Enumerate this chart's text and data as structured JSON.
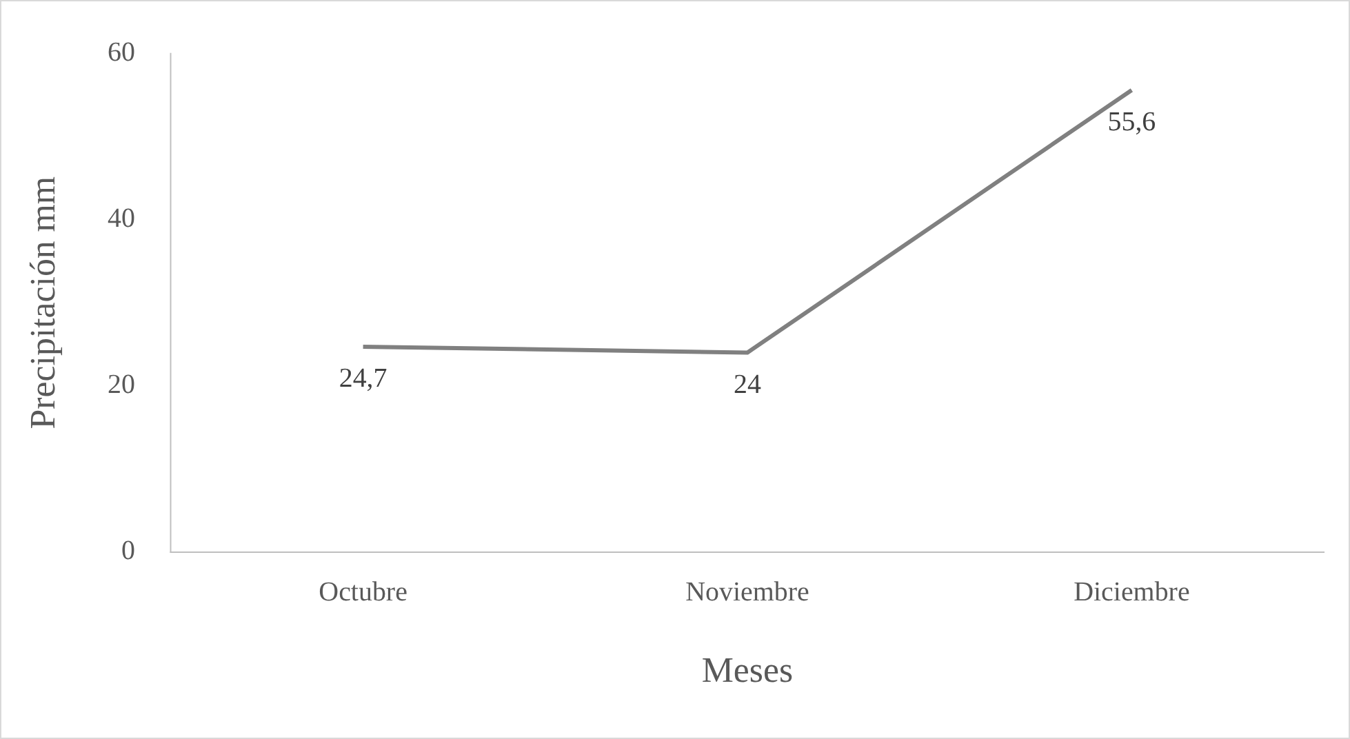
{
  "chart_data": {
    "type": "line",
    "xlabel": "Meses",
    "ylabel": "Precipitación mm",
    "categories": [
      "Octubre",
      "Noviembre",
      "Diciembre"
    ],
    "series": [
      {
        "color": "#808080",
        "values": [
          24.7,
          24,
          55.6
        ],
        "value_labels": [
          "24,7",
          "24",
          "55,6"
        ]
      }
    ],
    "ylim": [
      0,
      60
    ],
    "yticks": [
      0,
      20,
      40,
      60
    ],
    "grid": false,
    "legend": false,
    "marker": "none",
    "line_style": "solid"
  }
}
